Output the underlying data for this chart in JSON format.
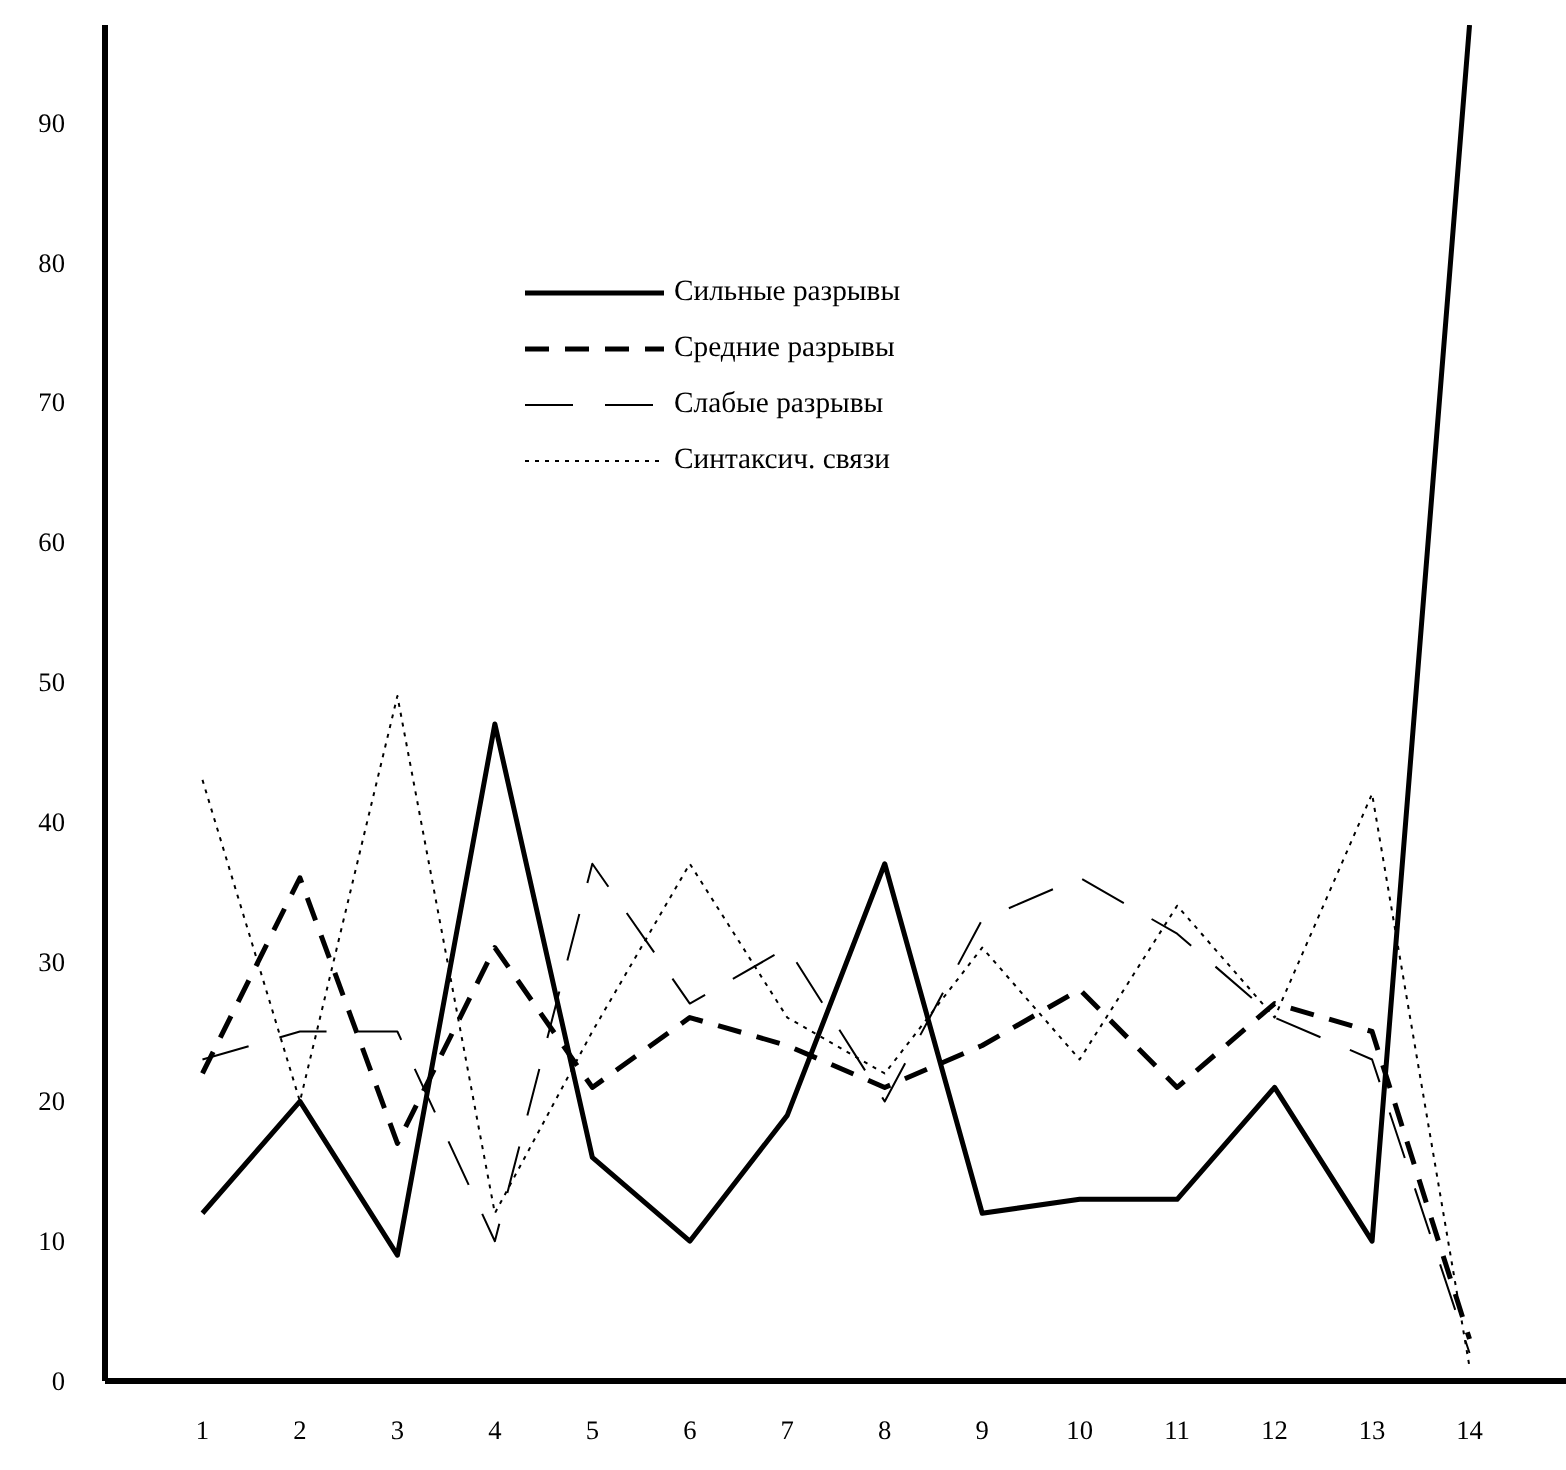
{
  "chart_data": {
    "type": "line",
    "x": [
      1,
      2,
      3,
      4,
      5,
      6,
      7,
      8,
      9,
      10,
      11,
      12,
      13,
      14
    ],
    "xlim": [
      0,
      15
    ],
    "xticks": [
      1,
      2,
      3,
      4,
      5,
      6,
      7,
      8,
      9,
      10,
      11,
      12,
      13,
      14
    ],
    "ylim": [
      0,
      97
    ],
    "yticks": [
      0,
      10,
      20,
      30,
      40,
      50,
      60,
      70,
      80,
      90
    ],
    "grid": false,
    "legend": "top",
    "marker": "none",
    "series": [
      {
        "name": "Сильные разрывы",
        "color": "#000000",
        "line_style": "solid",
        "values": [
          12,
          20,
          9,
          47,
          16,
          10,
          19,
          37,
          12,
          13,
          13,
          21,
          10,
          97
        ]
      },
      {
        "name": "Средние разрывы",
        "color": "#000000",
        "line_style": "dashed",
        "values": [
          22,
          36,
          17,
          31,
          21,
          26,
          24,
          21,
          24,
          28,
          21,
          27,
          25,
          3
        ]
      },
      {
        "name": "Слабые разрывы",
        "color": "#000000",
        "line_style": "dashed",
        "values": [
          23,
          25,
          25,
          10,
          37,
          27,
          31,
          20,
          33,
          36,
          32,
          26,
          23,
          2
        ]
      },
      {
        "name": "Синтаксич. связи",
        "color": "#000000",
        "line_style": "dotted",
        "values": [
          43,
          20,
          49,
          12,
          25,
          37,
          26,
          22,
          31,
          23,
          34,
          26,
          42,
          1
        ]
      }
    ]
  }
}
